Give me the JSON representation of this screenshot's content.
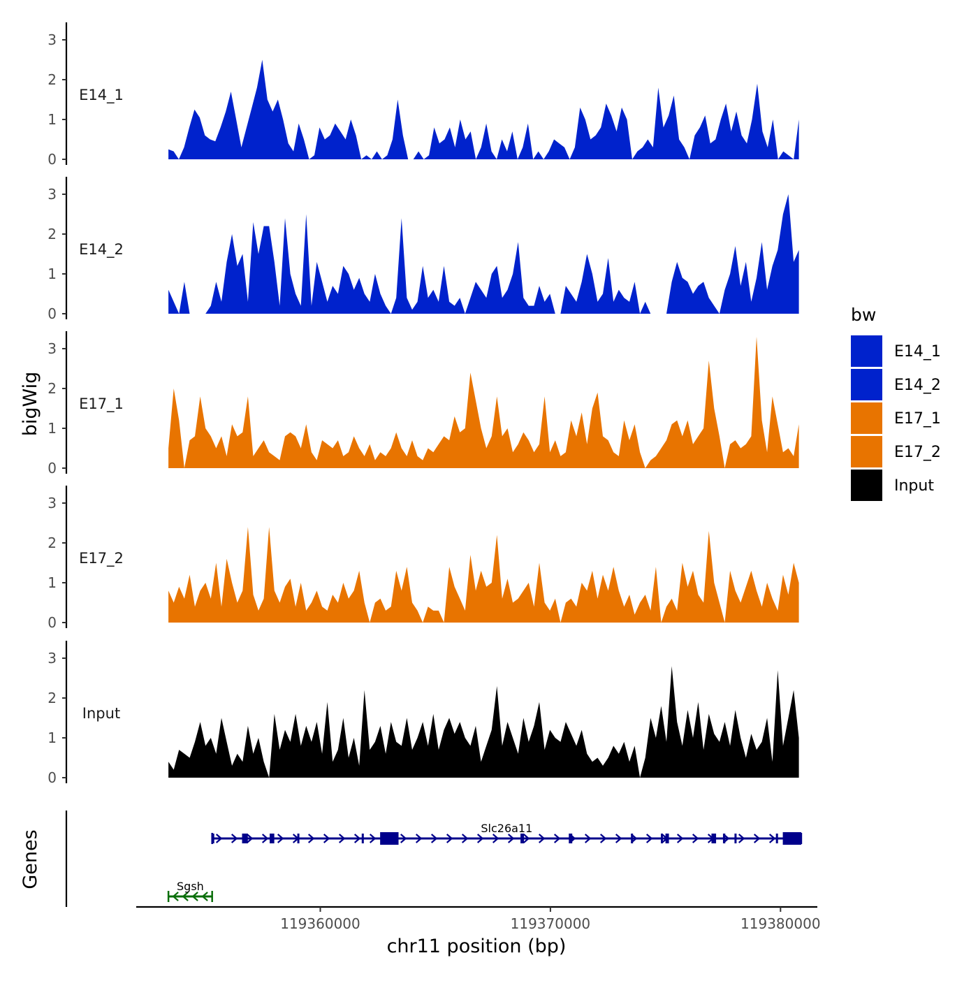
{
  "chart_data": {
    "type": "area",
    "title": "",
    "xlabel": "chr11 position (bp)",
    "ylabel": "bigWig",
    "genes_label": "Genes",
    "xlim": [
      119352000,
      119381600
    ],
    "ylim": [
      0,
      3.4
    ],
    "x_ticks": [
      {
        "value": 119360000,
        "label": "119360000"
      },
      {
        "value": 119370000,
        "label": "119370000"
      },
      {
        "value": 119380000,
        "label": "119380000"
      }
    ],
    "y_ticks": [
      {
        "value": 0,
        "label": "0"
      },
      {
        "value": 1,
        "label": "1"
      },
      {
        "value": 2,
        "label": "2"
      },
      {
        "value": 3,
        "label": "3"
      }
    ],
    "region": {
      "start": 119353400,
      "end": 119380800
    },
    "legend": {
      "title": "bw",
      "entries": [
        {
          "name": "E14_1",
          "color": "#0022cc"
        },
        {
          "name": "E14_2",
          "color": "#0022cc"
        },
        {
          "name": "E17_1",
          "color": "#e87400"
        },
        {
          "name": "E17_2",
          "color": "#e87400"
        },
        {
          "name": "Input",
          "color": "#000000"
        }
      ]
    },
    "series": [
      {
        "name": "E14_1",
        "label": "E14_1",
        "color": "#0022cc",
        "values": [
          0.25,
          0.2,
          0,
          0.3,
          0.8,
          1.25,
          1.05,
          0.6,
          0.5,
          0.45,
          0.8,
          1.2,
          1.7,
          1.0,
          0.3,
          0.8,
          1.3,
          1.8,
          2.5,
          1.5,
          1.2,
          1.5,
          1.0,
          0.4,
          0.2,
          0.9,
          0.5,
          0,
          0.1,
          0.8,
          0.5,
          0.6,
          0.9,
          0.7,
          0.5,
          1.0,
          0.6,
          0,
          0.1,
          0,
          0.2,
          0,
          0.1,
          0.5,
          1.5,
          0.6,
          0,
          0,
          0.2,
          0,
          0.1,
          0.8,
          0.4,
          0.5,
          0.8,
          0.3,
          1.0,
          0.5,
          0.7,
          0,
          0.3,
          0.9,
          0.2,
          0,
          0.5,
          0.2,
          0.7,
          0,
          0.3,
          0.9,
          0,
          0.2,
          0,
          0.2,
          0.5,
          0.4,
          0.3,
          0,
          0.3,
          1.3,
          1.0,
          0.5,
          0.6,
          0.8,
          1.4,
          1.1,
          0.7,
          1.3,
          1.0,
          0,
          0.2,
          0.3,
          0.5,
          0.3,
          1.8,
          0.8,
          1.1,
          1.6,
          0.5,
          0.3,
          0,
          0.6,
          0.8,
          1.1,
          0.4,
          0.5,
          1.0,
          1.4,
          0.7,
          1.2,
          0.6,
          0.4,
          1.0,
          1.9,
          0.7,
          0.3,
          1.0,
          0,
          0.2,
          0.1,
          0,
          1.0
        ]
      },
      {
        "name": "E14_2",
        "label": "E14_2",
        "color": "#0022cc",
        "values": [
          0.6,
          0.3,
          0,
          0.8,
          0,
          0,
          0,
          0,
          0.2,
          0.8,
          0.3,
          1.3,
          2.0,
          1.2,
          1.5,
          0.3,
          2.3,
          1.5,
          2.2,
          2.2,
          1.3,
          0.2,
          2.4,
          1.0,
          0.5,
          0.2,
          2.5,
          0.2,
          1.3,
          0.8,
          0.3,
          0.7,
          0.5,
          1.2,
          1.0,
          0.6,
          0.9,
          0.5,
          0.3,
          1.0,
          0.5,
          0.2,
          0,
          0.4,
          2.4,
          0.4,
          0.1,
          0.3,
          1.2,
          0.4,
          0.6,
          0.3,
          1.2,
          0.3,
          0.2,
          0.4,
          0,
          0.4,
          0.8,
          0.6,
          0.4,
          1.0,
          1.2,
          0.4,
          0.6,
          1.0,
          1.8,
          0.4,
          0.2,
          0.2,
          0.7,
          0.3,
          0.5,
          0,
          0,
          0.7,
          0.5,
          0.3,
          0.8,
          1.5,
          1.0,
          0.3,
          0.5,
          1.4,
          0.3,
          0.6,
          0.4,
          0.3,
          0.8,
          0,
          0.3,
          0,
          0,
          0,
          0,
          0.8,
          1.3,
          0.9,
          0.8,
          0.5,
          0.7,
          0.8,
          0.4,
          0.2,
          0,
          0.6,
          1.0,
          1.7,
          0.7,
          1.3,
          0.3,
          0.9,
          1.8,
          0.6,
          1.2,
          1.6,
          2.5,
          3.0,
          1.3,
          1.6
        ]
      },
      {
        "name": "E17_1",
        "label": "E17_1",
        "color": "#e87400",
        "values": [
          0.5,
          2.0,
          1.2,
          0,
          0.7,
          0.8,
          1.8,
          1.0,
          0.8,
          0.5,
          0.8,
          0.3,
          1.1,
          0.8,
          0.9,
          1.8,
          0.3,
          0.5,
          0.7,
          0.4,
          0.3,
          0.2,
          0.8,
          0.9,
          0.8,
          0.5,
          1.1,
          0.4,
          0.2,
          0.7,
          0.6,
          0.5,
          0.7,
          0.3,
          0.4,
          0.8,
          0.5,
          0.3,
          0.6,
          0.2,
          0.4,
          0.3,
          0.5,
          0.9,
          0.5,
          0.3,
          0.7,
          0.3,
          0.2,
          0.5,
          0.4,
          0.6,
          0.8,
          0.7,
          1.3,
          0.9,
          1.0,
          2.4,
          1.7,
          1.0,
          0.5,
          0.8,
          1.8,
          0.8,
          1.0,
          0.4,
          0.6,
          0.9,
          0.7,
          0.4,
          0.6,
          1.8,
          0.4,
          0.7,
          0.3,
          0.4,
          1.2,
          0.8,
          1.4,
          0.6,
          1.5,
          1.9,
          0.8,
          0.7,
          0.4,
          0.3,
          1.2,
          0.7,
          1.1,
          0.4,
          0,
          0.2,
          0.3,
          0.5,
          0.7,
          1.1,
          1.2,
          0.8,
          1.2,
          0.6,
          0.8,
          1.0,
          2.7,
          1.5,
          0.8,
          0,
          0.6,
          0.7,
          0.5,
          0.6,
          0.8,
          3.3,
          1.2,
          0.4,
          1.8,
          1.1,
          0.4,
          0.5,
          0.3,
          1.1
        ]
      },
      {
        "name": "E17_2",
        "label": "E17_2",
        "color": "#e87400",
        "values": [
          0.8,
          0.5,
          0.9,
          0.6,
          1.2,
          0.4,
          0.8,
          1.0,
          0.6,
          1.5,
          0.4,
          1.6,
          1.0,
          0.5,
          0.8,
          2.4,
          0.7,
          0.3,
          0.6,
          2.4,
          0.8,
          0.5,
          0.9,
          1.1,
          0.4,
          1.0,
          0.3,
          0.5,
          0.8,
          0.4,
          0.3,
          0.7,
          0.5,
          1.0,
          0.6,
          0.8,
          1.3,
          0.5,
          0,
          0.5,
          0.6,
          0.3,
          0.4,
          1.3,
          0.8,
          1.4,
          0.5,
          0.3,
          0,
          0.4,
          0.3,
          0.3,
          0,
          1.4,
          0.9,
          0.6,
          0.3,
          1.7,
          0.8,
          1.3,
          0.9,
          1.0,
          2.2,
          0.6,
          1.1,
          0.5,
          0.6,
          0.8,
          1.0,
          0.4,
          1.5,
          0.5,
          0.3,
          0.6,
          0,
          0.5,
          0.6,
          0.4,
          1.0,
          0.8,
          1.3,
          0.6,
          1.2,
          0.8,
          1.4,
          0.8,
          0.4,
          0.7,
          0.2,
          0.5,
          0.7,
          0.3,
          1.4,
          0,
          0.4,
          0.6,
          0.3,
          1.5,
          0.9,
          1.3,
          0.7,
          0.5,
          2.3,
          1.0,
          0.5,
          0,
          1.3,
          0.8,
          0.5,
          0.9,
          1.3,
          0.8,
          0.4,
          1.0,
          0.6,
          0.3,
          1.2,
          0.7,
          1.5,
          1.0
        ]
      },
      {
        "name": "Input",
        "label": "Input",
        "color": "#000000",
        "values": [
          0.4,
          0.2,
          0.7,
          0.6,
          0.5,
          0.9,
          1.4,
          0.8,
          1.0,
          0.6,
          1.5,
          0.9,
          0.3,
          0.6,
          0.4,
          1.3,
          0.6,
          1.0,
          0.4,
          0,
          1.6,
          0.7,
          1.2,
          0.9,
          1.6,
          0.8,
          1.3,
          0.9,
          1.4,
          0.6,
          1.9,
          0.4,
          0.7,
          1.5,
          0.5,
          1.0,
          0.3,
          2.2,
          0.7,
          0.9,
          1.3,
          0.6,
          1.4,
          0.9,
          0.8,
          1.5,
          0.7,
          1.0,
          1.4,
          0.8,
          1.6,
          0.7,
          1.2,
          1.5,
          1.1,
          1.4,
          1.0,
          0.8,
          1.3,
          0.4,
          0.8,
          1.2,
          2.3,
          0.8,
          1.4,
          1.0,
          0.6,
          1.5,
          0.9,
          1.3,
          1.9,
          0.7,
          1.2,
          1.0,
          0.9,
          1.4,
          1.1,
          0.8,
          1.2,
          0.6,
          0.4,
          0.5,
          0.3,
          0.5,
          0.8,
          0.6,
          0.9,
          0.4,
          0.8,
          0,
          0.5,
          1.5,
          1.0,
          1.8,
          0.9,
          2.8,
          1.4,
          0.8,
          1.7,
          1.0,
          1.9,
          0.7,
          1.6,
          1.1,
          0.9,
          1.4,
          0.8,
          1.7,
          1.0,
          0.5,
          1.1,
          0.7,
          0.9,
          1.5,
          0.4,
          2.7,
          0.8,
          1.5,
          2.2,
          1.0
        ]
      }
    ],
    "genes": [
      {
        "name": "Sgsh",
        "strand": "-",
        "start": 119353400,
        "end": 119355300,
        "color": "#0a6e0a",
        "exons": []
      },
      {
        "name": "Slc26a11",
        "strand": "+",
        "start": 119355300,
        "end": 119380900,
        "color": "#00008b",
        "exons": [
          {
            "start": 119355300,
            "end": 119355340
          },
          {
            "start": 119356600,
            "end": 119356850
          },
          {
            "start": 119357800,
            "end": 119358000
          },
          {
            "start": 119359000,
            "end": 119359080
          },
          {
            "start": 119361800,
            "end": 119361860
          },
          {
            "start": 119362600,
            "end": 119363400
          },
          {
            "start": 119368700,
            "end": 119368850
          },
          {
            "start": 119370800,
            "end": 119370950
          },
          {
            "start": 119373500,
            "end": 119373550
          },
          {
            "start": 119374800,
            "end": 119374850
          },
          {
            "start": 119375000,
            "end": 119375150
          },
          {
            "start": 119377000,
            "end": 119377200
          },
          {
            "start": 119377500,
            "end": 119377600
          },
          {
            "start": 119378000,
            "end": 119378080
          },
          {
            "start": 119379800,
            "end": 119379850
          },
          {
            "start": 119380100,
            "end": 119380900
          }
        ]
      }
    ]
  }
}
